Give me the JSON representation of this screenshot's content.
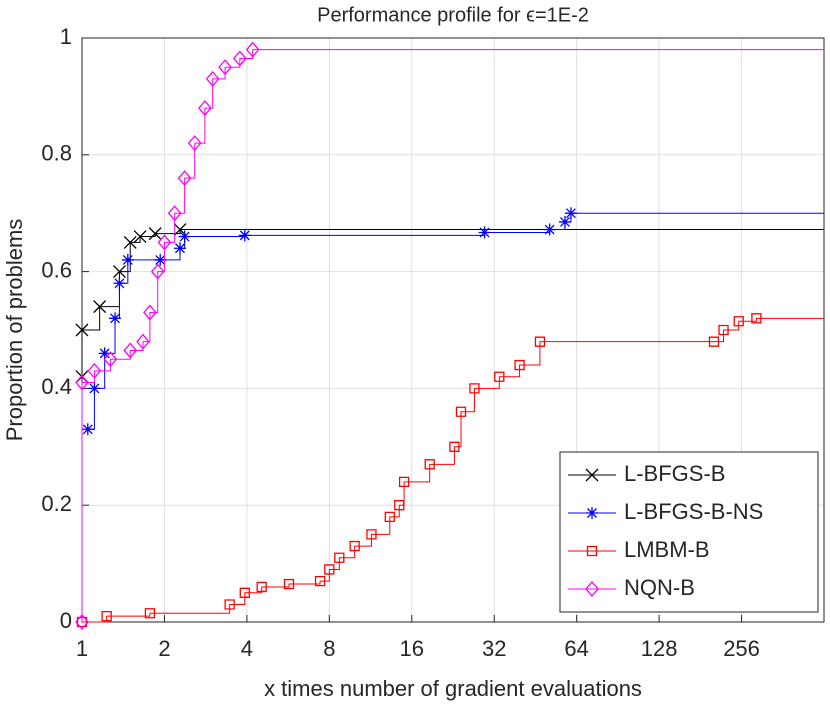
{
  "chart_data": {
    "type": "line",
    "step": true,
    "title": "Performance profile for ϵ=1E-2",
    "x_label": "x times number of gradient evaluations",
    "y_label": "Proportion of problems",
    "xscale": "log2",
    "xlim": [
      1,
      512
    ],
    "ylim": [
      0,
      1
    ],
    "xticks": [
      1,
      2,
      4,
      8,
      16,
      32,
      64,
      128,
      256
    ],
    "yticks": [
      0,
      0.2,
      0.4,
      0.6,
      0.8,
      1
    ],
    "grid": true,
    "legend": "lower right",
    "series": [
      {
        "name": "L-BFGS-B",
        "color": "#000000",
        "marker": "x",
        "x": [
          1,
          1,
          1.16,
          1.37,
          1.5,
          1.63,
          1.85,
          2.28,
          512
        ],
        "values": [
          0.42,
          0.5,
          0.54,
          0.6,
          0.65,
          0.66,
          0.665,
          0.672,
          0.672
        ]
      },
      {
        "name": "L-BFGS-B-NS",
        "color": "#0000ff",
        "marker": "asterisk",
        "x": [
          1.05,
          1.11,
          1.21,
          1.32,
          1.37,
          1.47,
          1.93,
          2.28,
          2.37,
          3.93,
          29.5,
          51,
          58,
          61,
          512
        ],
        "values": [
          0.33,
          0.4,
          0.46,
          0.52,
          0.58,
          0.62,
          0.62,
          0.64,
          0.66,
          0.662,
          0.667,
          0.672,
          0.685,
          0.7,
          0.7
        ]
      },
      {
        "name": "LMBM-B",
        "color": "#ff0000",
        "marker": "square",
        "x": [
          1,
          1.23,
          1.77,
          3.46,
          3.93,
          4.53,
          5.7,
          7.4,
          8,
          8.7,
          9.9,
          11.4,
          13.3,
          14.4,
          15,
          18.6,
          22.9,
          24.2,
          27.1,
          33.4,
          39.6,
          47,
          203,
          220,
          250,
          290,
          512
        ],
        "values": [
          0,
          0.01,
          0.015,
          0.03,
          0.05,
          0.06,
          0.065,
          0.07,
          0.09,
          0.11,
          0.13,
          0.15,
          0.18,
          0.2,
          0.24,
          0.27,
          0.3,
          0.36,
          0.4,
          0.42,
          0.44,
          0.48,
          0.48,
          0.5,
          0.515,
          0.52,
          0.52
        ]
      },
      {
        "name": "NQN-B",
        "color": "#ff00ff",
        "marker": "diamond",
        "x": [
          1,
          1,
          1.11,
          1.27,
          1.5,
          1.67,
          1.77,
          1.89,
          2,
          2.18,
          2.37,
          2.58,
          2.81,
          3,
          3.33,
          3.77,
          4.2,
          512
        ],
        "values": [
          0,
          0.41,
          0.43,
          0.45,
          0.465,
          0.48,
          0.53,
          0.6,
          0.65,
          0.7,
          0.76,
          0.82,
          0.88,
          0.93,
          0.95,
          0.965,
          0.98,
          0.98
        ]
      }
    ]
  }
}
